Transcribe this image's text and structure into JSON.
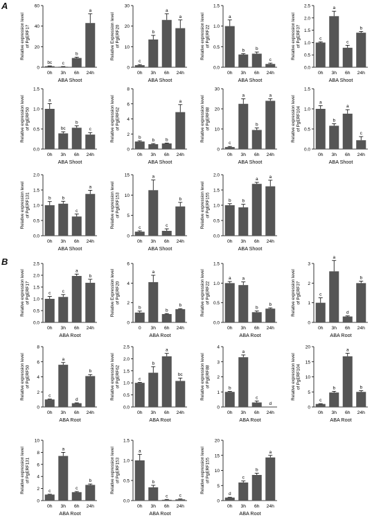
{
  "panel_labels": {
    "a": "A",
    "b": "B"
  },
  "colors": {
    "bar": "#555555",
    "axis": "#000000",
    "text": "#000000"
  },
  "chart_data": [
    {
      "type": "bar",
      "group": "A",
      "xlabel": "ABA Shoot",
      "ylabel": [
        "Relative expression level",
        "of PgERF17"
      ],
      "ylim": [
        0,
        60
      ],
      "yticks": [
        0,
        20,
        40,
        60
      ],
      "categories": [
        "0h",
        "3h",
        "6h",
        "24h"
      ],
      "values": [
        1.0,
        0.5,
        9.0,
        43.0
      ],
      "errors": [
        0.3,
        0.2,
        0.8,
        9.0
      ],
      "letters": [
        "bc",
        "c",
        "b",
        "a"
      ]
    },
    {
      "type": "bar",
      "group": "A",
      "xlabel": "ABA Shoot",
      "ylabel": [
        "Relative Expression level",
        "of PgERF20"
      ],
      "ylim": [
        0,
        30
      ],
      "yticks": [
        0,
        10,
        20,
        30
      ],
      "categories": [
        "0h",
        "3h",
        "6h",
        "24h"
      ],
      "values": [
        1.0,
        13.5,
        23.0,
        19.0
      ],
      "errors": [
        0.3,
        2.0,
        3.0,
        4.0
      ],
      "letters": [
        "c",
        "b",
        "a",
        "a"
      ]
    },
    {
      "type": "bar",
      "group": "A",
      "xlabel": "ABA Shoot",
      "ylabel": [
        "Relative expression level",
        "of PgERF22"
      ],
      "ylim": [
        0,
        1.5
      ],
      "yticks": [
        0.0,
        0.5,
        1.0,
        1.5
      ],
      "categories": [
        "0h",
        "3h",
        "6h",
        "24h"
      ],
      "values": [
        1.0,
        0.31,
        0.33,
        0.08
      ],
      "errors": [
        0.15,
        0.02,
        0.04,
        0.02
      ],
      "letters": [
        "a",
        "b",
        "b",
        "c"
      ]
    },
    {
      "type": "bar",
      "group": "A",
      "xlabel": "ABA Shoot",
      "ylabel": [
        "Relative expression level",
        "of PgERF37"
      ],
      "ylim": [
        0,
        2.5
      ],
      "yticks": [
        0.0,
        0.5,
        1.0,
        1.5,
        2.0,
        2.5
      ],
      "categories": [
        "0h",
        "3h",
        "6h",
        "24h"
      ],
      "values": [
        1.0,
        2.07,
        0.79,
        1.4
      ],
      "errors": [
        0.03,
        0.2,
        0.1,
        0.05
      ],
      "letters": [
        "c",
        "a",
        "c",
        "b"
      ]
    },
    {
      "type": "bar",
      "group": "A",
      "xlabel": "ABA Shoot",
      "ylabel": [
        "Relative expression level",
        "of PgERF50"
      ],
      "ylim": [
        0,
        1.5
      ],
      "yticks": [
        0.0,
        0.5,
        1.0,
        1.5
      ],
      "categories": [
        "0h",
        "3h",
        "6h",
        "24h"
      ],
      "values": [
        1.0,
        0.39,
        0.53,
        0.36
      ],
      "errors": [
        0.13,
        0.04,
        0.05,
        0.05
      ],
      "letters": [
        "a",
        "bc",
        "b",
        "c"
      ]
    },
    {
      "type": "bar",
      "group": "A",
      "xlabel": "ABA Shoot",
      "ylabel": [
        "Relative expression level",
        "of PgERF62"
      ],
      "ylim": [
        0,
        8
      ],
      "yticks": [
        0,
        2,
        4,
        6,
        8
      ],
      "categories": [
        "0h",
        "3h",
        "6h",
        "24h"
      ],
      "values": [
        1.0,
        0.65,
        0.75,
        4.9
      ],
      "errors": [
        0.1,
        0.08,
        0.05,
        1.0
      ],
      "letters": [
        "b",
        "b",
        "b",
        "a"
      ]
    },
    {
      "type": "bar",
      "group": "A",
      "xlabel": "ABA Shoot",
      "ylabel": [
        "Relative expression level",
        "of PgERF88"
      ],
      "ylim": [
        0,
        30
      ],
      "yticks": [
        0,
        10,
        20,
        30
      ],
      "categories": [
        "0h",
        "3h",
        "6h",
        "24h"
      ],
      "values": [
        1.0,
        22.5,
        9.5,
        24.0
      ],
      "errors": [
        0.3,
        2.5,
        1.0,
        1.0
      ],
      "letters": [
        "c",
        "a",
        "b",
        "a"
      ]
    },
    {
      "type": "bar",
      "group": "A",
      "xlabel": "ABA Shoot",
      "ylabel": [
        "Relative expression level",
        "of PgERF104"
      ],
      "ylim": [
        0,
        1.5
      ],
      "yticks": [
        0.0,
        0.5,
        1.0,
        1.5
      ],
      "categories": [
        "0h",
        "3h",
        "6h",
        "24h"
      ],
      "values": [
        1.0,
        0.58,
        0.88,
        0.22
      ],
      "errors": [
        0.08,
        0.05,
        0.1,
        0.09
      ],
      "letters": [
        "a",
        "b",
        "a",
        "c"
      ]
    },
    {
      "type": "bar",
      "group": "A",
      "xlabel": "ABA Shoot",
      "ylabel": [
        "Relative expression level",
        "of PgERF131"
      ],
      "ylim": [
        0,
        2.0
      ],
      "yticks": [
        0.0,
        0.5,
        1.0,
        1.5,
        2.0
      ],
      "categories": [
        "0h",
        "3h",
        "6h",
        "24h"
      ],
      "values": [
        1.0,
        1.05,
        0.63,
        1.37
      ],
      "errors": [
        0.12,
        0.08,
        0.08,
        0.12
      ],
      "letters": [
        "b",
        "b",
        "c",
        "a"
      ]
    },
    {
      "type": "bar",
      "group": "A",
      "xlabel": "ABA Shoot",
      "ylabel": [
        "Relative expression level",
        "of PgERF153"
      ],
      "ylim": [
        0,
        15
      ],
      "yticks": [
        0,
        5,
        10,
        15
      ],
      "categories": [
        "0h",
        "3h",
        "6h",
        "24h"
      ],
      "values": [
        1.0,
        11.2,
        1.2,
        7.2
      ],
      "errors": [
        0.2,
        2.5,
        0.5,
        1.0
      ],
      "letters": [
        "c",
        "a",
        "c",
        "b"
      ]
    },
    {
      "type": "bar",
      "group": "A",
      "xlabel": "ABA Shoot",
      "ylabel": [
        "Relative expression level",
        "of PgERF155"
      ],
      "ylim": [
        0,
        2.0
      ],
      "yticks": [
        0.0,
        0.5,
        1.0,
        1.5,
        2.0
      ],
      "categories": [
        "0h",
        "3h",
        "6h",
        "24h"
      ],
      "values": [
        1.0,
        0.93,
        1.7,
        1.62
      ],
      "errors": [
        0.05,
        0.1,
        0.05,
        0.2
      ],
      "letters": [
        "b",
        "b",
        "a",
        "a"
      ]
    },
    {
      "type": "bar",
      "group": "B",
      "xlabel": "ABA Root",
      "ylabel": [
        "Relative expression level",
        "of PgERF17"
      ],
      "ylim": [
        0,
        2.5
      ],
      "yticks": [
        0.0,
        0.5,
        1.0,
        1.5,
        2.0,
        2.5
      ],
      "categories": [
        "0h",
        "3h",
        "6h",
        "24h"
      ],
      "values": [
        1.0,
        1.08,
        1.97,
        1.68
      ],
      "errors": [
        0.1,
        0.1,
        0.08,
        0.15
      ],
      "letters": [
        "c",
        "c",
        "a",
        "b"
      ]
    },
    {
      "type": "bar",
      "group": "B",
      "xlabel": "ABA Root",
      "ylabel": [
        "Relative Expression level",
        "of PgERF20"
      ],
      "ylim": [
        0,
        6
      ],
      "yticks": [
        0,
        2,
        4,
        6
      ],
      "categories": [
        "0",
        "3h",
        "6h",
        "24h"
      ],
      "values": [
        1.0,
        4.1,
        0.85,
        1.35
      ],
      "errors": [
        0.15,
        0.7,
        0.05,
        0.05
      ],
      "letters": [
        "b",
        "a",
        "b",
        "b"
      ]
    },
    {
      "type": "bar",
      "group": "B",
      "xlabel": "ABA Root",
      "ylabel": [
        "Relative expression level",
        "of PgERF22"
      ],
      "ylim": [
        0,
        1.5
      ],
      "yticks": [
        0.0,
        0.5,
        1.0,
        1.5
      ],
      "categories": [
        "0h",
        "3h",
        "6h",
        "24h"
      ],
      "values": [
        1.0,
        0.95,
        0.26,
        0.35
      ],
      "errors": [
        0.04,
        0.08,
        0.03,
        0.02
      ],
      "letters": [
        "a",
        "a",
        "b",
        "b"
      ]
    },
    {
      "type": "bar",
      "group": "B",
      "xlabel": "ABA Root",
      "ylabel": [
        "Relative expression level",
        "of PgERF37"
      ],
      "ylim": [
        0,
        3
      ],
      "yticks": [
        0,
        1,
        2,
        3
      ],
      "categories": [
        "0h",
        "3h",
        "6h",
        "24h"
      ],
      "values": [
        1.0,
        2.6,
        0.3,
        2.0
      ],
      "errors": [
        0.25,
        0.55,
        0.03,
        0.1
      ],
      "letters": [
        "c",
        "a",
        "d",
        "b"
      ]
    },
    {
      "type": "bar",
      "group": "B",
      "xlabel": "ABA Root",
      "ylabel": [
        "Relative expression level",
        "of PgERF50"
      ],
      "ylim": [
        0,
        8
      ],
      "yticks": [
        0,
        2,
        4,
        6,
        8
      ],
      "categories": [
        "0h",
        "3h",
        "6h",
        "24h"
      ],
      "values": [
        1.0,
        5.6,
        0.5,
        4.1
      ],
      "errors": [
        0.05,
        0.3,
        0.05,
        0.2
      ],
      "letters": [
        "c",
        "a",
        "d",
        "b"
      ]
    },
    {
      "type": "bar",
      "group": "B",
      "xlabel": "ABA Root",
      "ylabel": [
        "Relative expression level",
        "of PgERF62"
      ],
      "ylim": [
        0,
        2.5
      ],
      "yticks": [
        0.0,
        0.5,
        1.0,
        1.5,
        2.0,
        2.5
      ],
      "categories": [
        "0h",
        "3h",
        "6h",
        "24h"
      ],
      "values": [
        1.0,
        1.42,
        2.1,
        1.08
      ],
      "errors": [
        0.02,
        0.25,
        0.12,
        0.12
      ],
      "letters": [
        "c",
        "b",
        "a",
        "bc"
      ]
    },
    {
      "type": "bar",
      "group": "B",
      "xlabel": "ABA Root",
      "ylabel": [
        "Relative expression level",
        "of PgERF88"
      ],
      "ylim": [
        0,
        4
      ],
      "yticks": [
        0,
        1,
        2,
        3,
        4
      ],
      "categories": [
        "0h",
        "3h",
        "6h",
        "24h"
      ],
      "values": [
        1.0,
        3.3,
        0.3,
        0.0
      ],
      "errors": [
        0.03,
        0.15,
        0.1,
        0.0
      ],
      "letters": [
        "b",
        "a",
        "c",
        "d"
      ]
    },
    {
      "type": "bar",
      "group": "B",
      "xlabel": "ABA Root",
      "ylabel": [
        "Relative expression level",
        "of PgERF104"
      ],
      "ylim": [
        0,
        20
      ],
      "yticks": [
        0,
        5,
        10,
        15,
        20
      ],
      "categories": [
        "0h",
        "3h",
        "6h",
        "24h"
      ],
      "values": [
        1.0,
        4.8,
        16.8,
        5.0
      ],
      "errors": [
        0.1,
        0.4,
        1.0,
        0.4
      ],
      "letters": [
        "c",
        "b",
        "a",
        "b"
      ]
    },
    {
      "type": "bar",
      "group": "B",
      "xlabel": "ABA Root",
      "ylabel": [
        "Relative expression level",
        "of PgERF131"
      ],
      "ylim": [
        0,
        10
      ],
      "yticks": [
        0,
        2,
        4,
        6,
        8,
        10
      ],
      "categories": [
        "0h",
        "3h",
        "6h",
        "24h"
      ],
      "values": [
        1.0,
        7.4,
        1.4,
        2.6
      ],
      "errors": [
        0.05,
        0.6,
        0.1,
        0.15
      ],
      "letters": [
        "c",
        "a",
        "c",
        "b"
      ]
    },
    {
      "type": "bar",
      "group": "B",
      "xlabel": "ABA Root",
      "ylabel": [
        "Relative expression level",
        "of PgERF153"
      ],
      "ylim": [
        0,
        1.5
      ],
      "yticks": [
        0.0,
        0.5,
        1.0,
        1.5
      ],
      "categories": [
        "0h",
        "3h",
        "6h",
        "24h"
      ],
      "values": [
        1.0,
        0.33,
        0.02,
        0.03
      ],
      "errors": [
        0.15,
        0.05,
        0.01,
        0.01
      ],
      "letters": [
        "a",
        "b",
        "c",
        "c"
      ]
    },
    {
      "type": "bar",
      "group": "B",
      "xlabel": "ABA Root",
      "ylabel": [
        "Relative expression level",
        "of PgERF155"
      ],
      "ylim": [
        0,
        20
      ],
      "yticks": [
        0,
        5,
        10,
        15,
        20
      ],
      "categories": [
        "0h",
        "3h",
        "6h",
        "24h"
      ],
      "values": [
        1.0,
        6.0,
        8.5,
        14.3
      ],
      "errors": [
        0.1,
        0.5,
        0.6,
        0.7
      ],
      "letters": [
        "d",
        "c",
        "b",
        "a"
      ]
    }
  ]
}
